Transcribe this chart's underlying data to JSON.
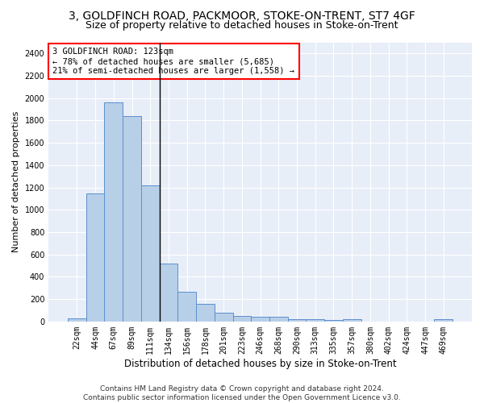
{
  "title1": "3, GOLDFINCH ROAD, PACKMOOR, STOKE-ON-TRENT, ST7 4GF",
  "title2": "Size of property relative to detached houses in Stoke-on-Trent",
  "xlabel": "Distribution of detached houses by size in Stoke-on-Trent",
  "ylabel": "Number of detached properties",
  "bar_labels": [
    "22sqm",
    "44sqm",
    "67sqm",
    "89sqm",
    "111sqm",
    "134sqm",
    "156sqm",
    "178sqm",
    "201sqm",
    "223sqm",
    "246sqm",
    "268sqm",
    "290sqm",
    "313sqm",
    "335sqm",
    "357sqm",
    "380sqm",
    "402sqm",
    "424sqm",
    "447sqm",
    "469sqm"
  ],
  "bar_values": [
    28,
    1150,
    1960,
    1840,
    1220,
    520,
    265,
    155,
    80,
    50,
    45,
    40,
    22,
    18,
    10,
    20,
    0,
    0,
    0,
    0,
    20
  ],
  "bar_color": "#b8cfe8",
  "bar_edge_color": "#5b8fcf",
  "vline_color": "black",
  "annotation_text": "3 GOLDFINCH ROAD: 123sqm\n← 78% of detached houses are smaller (5,685)\n21% of semi-detached houses are larger (1,558) →",
  "annotation_box_color": "white",
  "annotation_box_edge_color": "red",
  "ylim": [
    0,
    2500
  ],
  "yticks": [
    0,
    200,
    400,
    600,
    800,
    1000,
    1200,
    1400,
    1600,
    1800,
    2000,
    2200,
    2400
  ],
  "background_color": "#e8eef8",
  "grid_color": "#ffffff",
  "footer_line1": "Contains HM Land Registry data © Crown copyright and database right 2024.",
  "footer_line2": "Contains public sector information licensed under the Open Government Licence v3.0.",
  "title1_fontsize": 10,
  "title2_fontsize": 9,
  "xlabel_fontsize": 8.5,
  "ylabel_fontsize": 8,
  "tick_fontsize": 7,
  "annotation_fontsize": 7.5,
  "footer_fontsize": 6.5
}
